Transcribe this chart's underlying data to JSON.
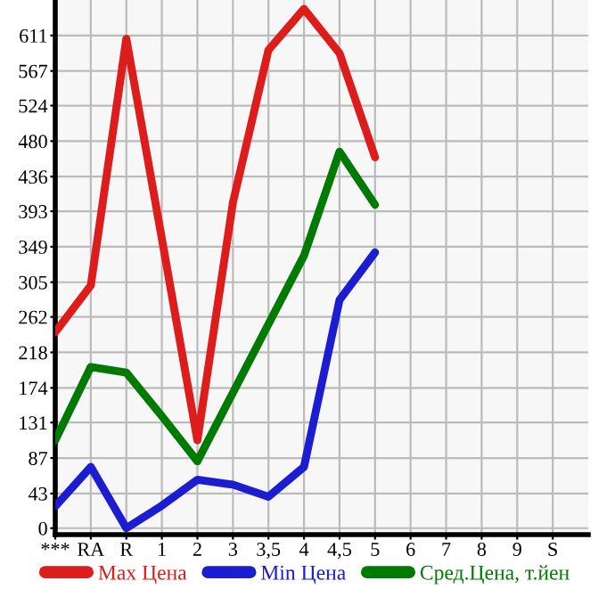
{
  "chart_data": {
    "type": "line",
    "categories": [
      "***",
      "RA",
      "R",
      "1",
      "2",
      "3",
      "3,5",
      "4",
      "4,5",
      "5",
      "6",
      "7",
      "8",
      "9",
      "S"
    ],
    "series": [
      {
        "name": "Max Цена",
        "color": "#dd1c1c",
        "values": [
          243,
          301,
          607,
          359,
          109,
          404,
          593,
          644,
          589,
          460,
          null,
          null,
          null,
          null,
          null
        ]
      },
      {
        "name": "Min Цена",
        "color": "#1c1cd0",
        "values": [
          27,
          76,
          0,
          28,
          60,
          54,
          39,
          76,
          283,
          342,
          null,
          null,
          null,
          null,
          null
        ]
      },
      {
        "name": "Сред.Цена, т.йен",
        "color": "#007a00",
        "values": [
          109,
          200,
          193,
          139,
          83,
          168,
          253,
          338,
          467,
          401,
          null,
          null,
          null,
          null,
          null
        ]
      }
    ],
    "ylim": [
      -8,
      655
    ],
    "yticks": [
      0,
      43,
      87,
      131,
      174,
      218,
      262,
      305,
      349,
      393,
      436,
      480,
      524,
      567,
      611
    ],
    "grid": true,
    "legend": "bottom",
    "marker": "none",
    "line_style": "solid"
  }
}
